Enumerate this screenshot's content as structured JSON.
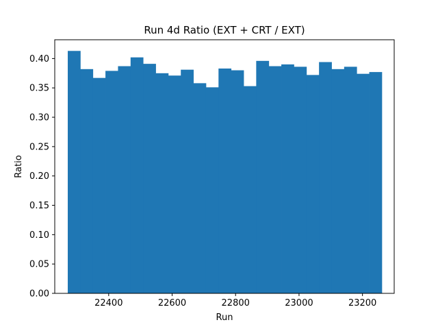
{
  "chart_data": {
    "type": "bar",
    "title": "Run 4d Ratio (EXT + CRT / EXT)",
    "xlabel": "Run",
    "ylabel": "Ratio",
    "xlim": [
      22230,
      23300
    ],
    "ylim": [
      0.0,
      0.432
    ],
    "x_ticks": [
      22400,
      22600,
      22800,
      23000,
      23200
    ],
    "x_tick_labels": [
      "22400",
      "22600",
      "22800",
      "23000",
      "23200"
    ],
    "y_ticks": [
      0.0,
      0.05,
      0.1,
      0.15,
      0.2,
      0.25,
      0.3,
      0.35,
      0.4
    ],
    "y_tick_labels": [
      "0.00",
      "0.05",
      "0.10",
      "0.15",
      "0.20",
      "0.25",
      "0.30",
      "0.35",
      "0.40"
    ],
    "bin_start": 22271,
    "bin_width": 39.6,
    "values": [
      0.413,
      0.382,
      0.367,
      0.379,
      0.387,
      0.402,
      0.391,
      0.375,
      0.371,
      0.381,
      0.358,
      0.351,
      0.383,
      0.38,
      0.353,
      0.396,
      0.387,
      0.39,
      0.386,
      0.372,
      0.394,
      0.382,
      0.386,
      0.374,
      0.377
    ],
    "bar_color": "#1f77b4",
    "grid": false,
    "legend": "none"
  }
}
